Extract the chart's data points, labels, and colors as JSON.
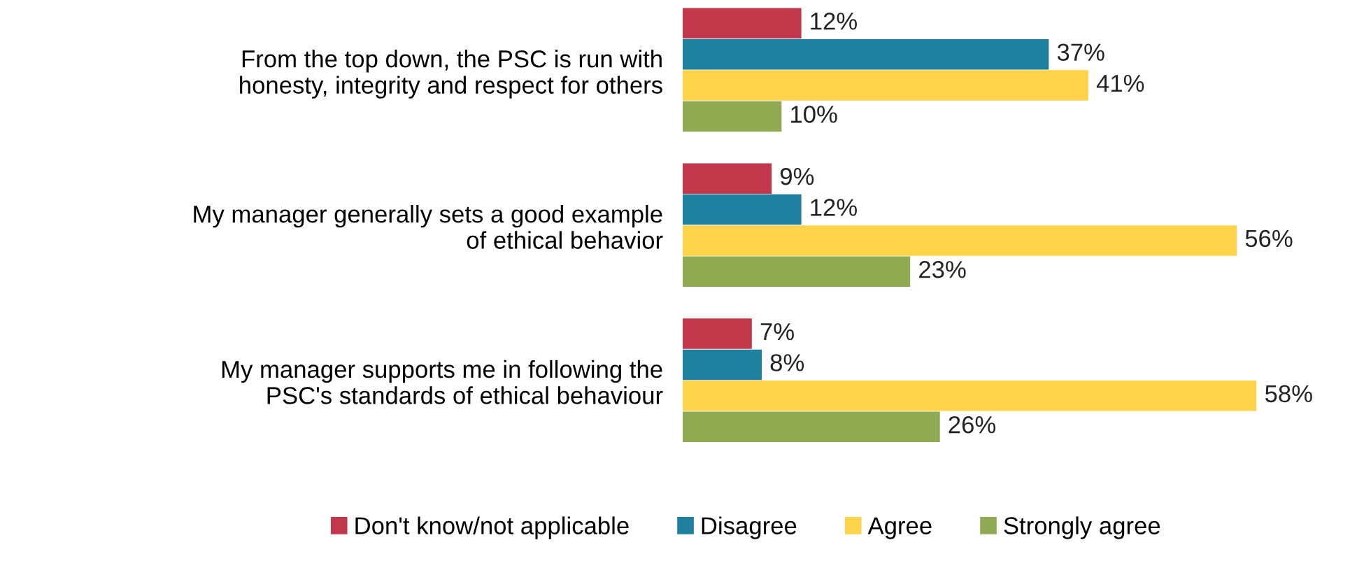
{
  "chart_data": {
    "type": "bar",
    "orientation": "horizontal",
    "categories": [
      "From the top down, the PSC is run with\nhonesty, integrity and respect for others",
      "My manager generally sets a good example\nof ethical behavior",
      "My manager supports me in following the\nPSC's standards of ethical behaviour"
    ],
    "series": [
      {
        "name": "Don't know/not applicable",
        "color": "#c1374b",
        "values": [
          12,
          9,
          7
        ],
        "value_labels": [
          "12%",
          "9%",
          "7%"
        ]
      },
      {
        "name": "Disagree",
        "color": "#1f7f9e",
        "values": [
          37,
          12,
          8
        ],
        "value_labels": [
          "37%",
          "12%",
          "8%"
        ]
      },
      {
        "name": "Agree",
        "color": "#fdd34b",
        "values": [
          41,
          56,
          58
        ],
        "value_labels": [
          "41%",
          "56%",
          "58%"
        ]
      },
      {
        "name": "Strongly agree",
        "color": "#8faa52",
        "values": [
          10,
          23,
          26
        ],
        "value_labels": [
          "10%",
          "23%",
          "26%"
        ]
      }
    ],
    "legend": "bottom",
    "grid": false
  }
}
